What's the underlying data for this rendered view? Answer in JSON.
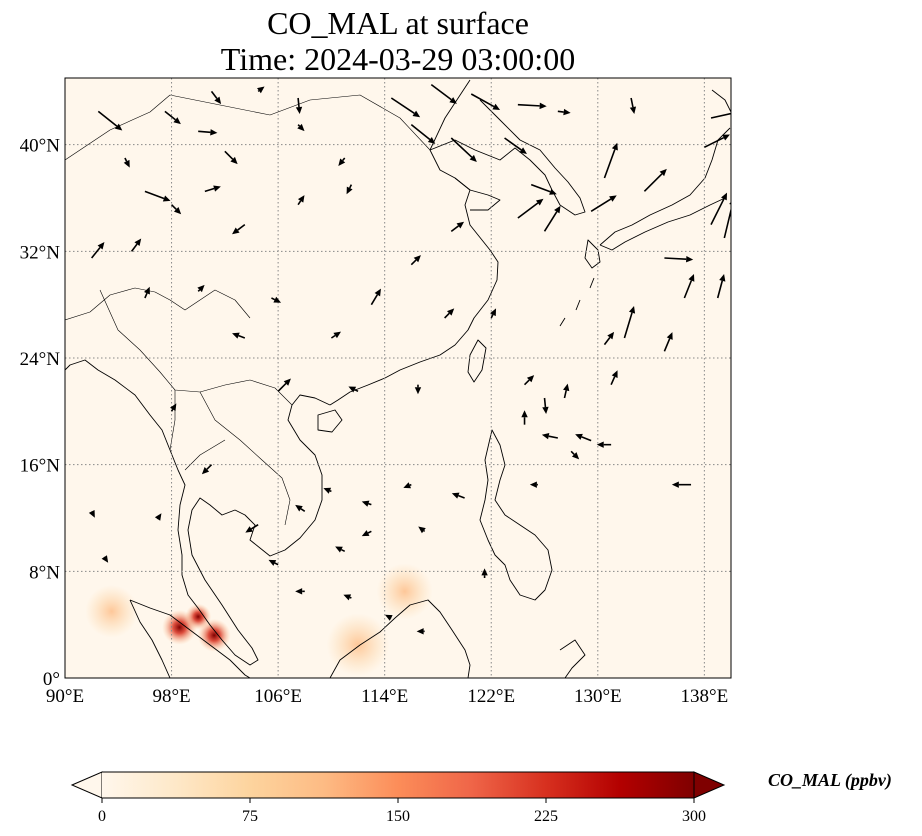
{
  "title": {
    "line1": "CO_MAL at surface",
    "line2": "Time: 2024-03-29 03:00:00"
  },
  "map": {
    "projection": "PlateCarree",
    "lon_range": [
      90,
      140
    ],
    "lat_range": [
      0,
      45
    ],
    "gridlines": "dotted",
    "x_ticks": [
      "90°E",
      "98°E",
      "106°E",
      "114°E",
      "122°E",
      "130°E",
      "138°E"
    ],
    "y_ticks": [
      "0°",
      "8°N",
      "16°N",
      "24°N",
      "32°N",
      "40°N"
    ],
    "x_tick_values": [
      90,
      98,
      106,
      114,
      122,
      130,
      138
    ],
    "y_tick_values": [
      0,
      8,
      16,
      24,
      32,
      40
    ],
    "field": "CO_MAL",
    "hotspots": [
      {
        "lon": 98.6,
        "lat": 3.8,
        "value": 300
      },
      {
        "lon": 101.2,
        "lat": 3.2,
        "value": 260
      },
      {
        "lon": 100.0,
        "lat": 4.6,
        "value": 120
      },
      {
        "lon": 112.0,
        "lat": 2.5,
        "value": 40
      },
      {
        "lon": 115.5,
        "lat": 6.5,
        "value": 30
      },
      {
        "lon": 93.5,
        "lat": 5.0,
        "value": 25
      }
    ],
    "wind_vectors": [
      {
        "lon": 92.5,
        "lat": 42.5,
        "u": 1.5,
        "v": -1.2
      },
      {
        "lon": 97.5,
        "lat": 42.5,
        "u": 1.0,
        "v": -0.8
      },
      {
        "lon": 101,
        "lat": 44,
        "u": 0.6,
        "v": -0.8
      },
      {
        "lon": 104.5,
        "lat": 44,
        "u": 0.4,
        "v": 0.3
      },
      {
        "lon": 107.5,
        "lat": 43.5,
        "u": 0.1,
        "v": -1.0
      },
      {
        "lon": 114.5,
        "lat": 43.5,
        "u": 1.8,
        "v": -1.2
      },
      {
        "lon": 117.5,
        "lat": 44.5,
        "u": 1.6,
        "v": -1.2
      },
      {
        "lon": 120.5,
        "lat": 43.8,
        "u": 1.8,
        "v": -1.0
      },
      {
        "lon": 124,
        "lat": 43,
        "u": 1.8,
        "v": -0.1
      },
      {
        "lon": 127,
        "lat": 42.5,
        "u": 0.8,
        "v": -0.1
      },
      {
        "lon": 132.5,
        "lat": 43.5,
        "u": 0.2,
        "v": -1.0
      },
      {
        "lon": 138.5,
        "lat": 42,
        "u": 1.8,
        "v": 0.4
      },
      {
        "lon": 116,
        "lat": 41.5,
        "u": 1.5,
        "v": -1.2
      },
      {
        "lon": 119,
        "lat": 40.5,
        "u": 1.6,
        "v": -1.5
      },
      {
        "lon": 123,
        "lat": 40.5,
        "u": 1.4,
        "v": -1.0
      },
      {
        "lon": 125,
        "lat": 37,
        "u": 1.6,
        "v": -0.6
      },
      {
        "lon": 130.5,
        "lat": 37.5,
        "u": 0.8,
        "v": 2.2
      },
      {
        "lon": 133.5,
        "lat": 36.5,
        "u": 1.4,
        "v": 1.4
      },
      {
        "lon": 138,
        "lat": 39.8,
        "u": 1.6,
        "v": 0.8
      },
      {
        "lon": 138.5,
        "lat": 34,
        "u": 1.0,
        "v": 2.0
      },
      {
        "lon": 139.5,
        "lat": 33,
        "u": 0.6,
        "v": 2.5
      },
      {
        "lon": 129.5,
        "lat": 35,
        "u": 1.6,
        "v": 1.0
      },
      {
        "lon": 124,
        "lat": 34.5,
        "u": 1.6,
        "v": 1.2
      },
      {
        "lon": 126,
        "lat": 33.5,
        "u": 1.0,
        "v": 1.6
      },
      {
        "lon": 119,
        "lat": 33.5,
        "u": 0.8,
        "v": 0.6
      },
      {
        "lon": 135,
        "lat": 31.5,
        "u": 1.8,
        "v": -0.1
      },
      {
        "lon": 136.5,
        "lat": 28.5,
        "u": 0.6,
        "v": 1.5
      },
      {
        "lon": 139,
        "lat": 28.5,
        "u": 0.4,
        "v": 1.5
      },
      {
        "lon": 132,
        "lat": 25.5,
        "u": 0.6,
        "v": 2.0
      },
      {
        "lon": 130.5,
        "lat": 25.0,
        "u": 0.6,
        "v": 0.8
      },
      {
        "lon": 135,
        "lat": 24.5,
        "u": 0.5,
        "v": 1.2
      },
      {
        "lon": 96,
        "lat": 36.5,
        "u": 1.6,
        "v": -0.6
      },
      {
        "lon": 98,
        "lat": 35.5,
        "u": 0.6,
        "v": -0.6
      },
      {
        "lon": 100.5,
        "lat": 36.5,
        "u": 1.0,
        "v": 0.3
      },
      {
        "lon": 95,
        "lat": 32,
        "u": 0.6,
        "v": 0.8
      },
      {
        "lon": 92,
        "lat": 31.5,
        "u": 0.8,
        "v": 1.0
      },
      {
        "lon": 103.5,
        "lat": 34,
        "u": -0.8,
        "v": -0.6
      },
      {
        "lon": 107.5,
        "lat": 35.5,
        "u": 0.4,
        "v": 0.6
      },
      {
        "lon": 111.5,
        "lat": 37,
        "u": -0.3,
        "v": -0.6
      },
      {
        "lon": 105.5,
        "lat": 28.5,
        "u": 0.6,
        "v": -0.3
      },
      {
        "lon": 113,
        "lat": 28,
        "u": 0.6,
        "v": 1.0
      },
      {
        "lon": 116,
        "lat": 31,
        "u": 0.6,
        "v": 0.6
      },
      {
        "lon": 116.5,
        "lat": 22,
        "u": 0.0,
        "v": -0.6
      },
      {
        "lon": 124.5,
        "lat": 22,
        "u": 0.6,
        "v": 0.6
      },
      {
        "lon": 126,
        "lat": 21,
        "u": 0.1,
        "v": -1.0
      },
      {
        "lon": 127.5,
        "lat": 21,
        "u": 0.2,
        "v": 0.9
      },
      {
        "lon": 131,
        "lat": 22,
        "u": 0.4,
        "v": 0.9
      },
      {
        "lon": 124.5,
        "lat": 19,
        "u": 0.0,
        "v": 0.9
      },
      {
        "lon": 127,
        "lat": 18,
        "u": -1.0,
        "v": 0.2
      },
      {
        "lon": 129.5,
        "lat": 17.8,
        "u": -1.0,
        "v": 0.4
      },
      {
        "lon": 131,
        "lat": 17.5,
        "u": -0.9,
        "v": 0.0
      },
      {
        "lon": 128,
        "lat": 17,
        "u": 0.5,
        "v": -0.5
      },
      {
        "lon": 137,
        "lat": 14.5,
        "u": -1.2,
        "v": 0.0
      },
      {
        "lon": 125.5,
        "lat": 14.5,
        "u": -0.5,
        "v": 0.0
      },
      {
        "lon": 120,
        "lat": 13.5,
        "u": -0.8,
        "v": 0.3
      },
      {
        "lon": 116,
        "lat": 14.5,
        "u": -0.5,
        "v": -0.2
      },
      {
        "lon": 113,
        "lat": 13,
        "u": -0.6,
        "v": 0.2
      },
      {
        "lon": 110,
        "lat": 14,
        "u": -0.5,
        "v": 0.2
      },
      {
        "lon": 108,
        "lat": 12.5,
        "u": -0.6,
        "v": 0.4
      },
      {
        "lon": 111,
        "lat": 9.5,
        "u": -0.6,
        "v": 0.3
      },
      {
        "lon": 113,
        "lat": 11,
        "u": -0.6,
        "v": -0.3
      },
      {
        "lon": 117,
        "lat": 11,
        "u": -0.4,
        "v": 0.3
      },
      {
        "lon": 104.5,
        "lat": 11.5,
        "u": -0.8,
        "v": -0.5
      },
      {
        "lon": 106,
        "lat": 8.5,
        "u": -0.6,
        "v": 0.3
      },
      {
        "lon": 108,
        "lat": 6.5,
        "u": -0.6,
        "v": 0.0
      },
      {
        "lon": 111.5,
        "lat": 6.0,
        "u": -0.5,
        "v": 0.2
      },
      {
        "lon": 114.5,
        "lat": 4.5,
        "u": -0.4,
        "v": 0.2
      },
      {
        "lon": 117,
        "lat": 3.5,
        "u": -0.5,
        "v": 0.0
      },
      {
        "lon": 121.5,
        "lat": 7.5,
        "u": 0.0,
        "v": 0.6
      },
      {
        "lon": 92,
        "lat": 12.5,
        "u": 0.2,
        "v": -0.4
      },
      {
        "lon": 93,
        "lat": 9,
        "u": 0.2,
        "v": -0.3
      },
      {
        "lon": 97,
        "lat": 12,
        "u": 0.2,
        "v": 0.3
      },
      {
        "lon": 101,
        "lat": 16,
        "u": -0.6,
        "v": -0.6
      },
      {
        "lon": 98,
        "lat": 20,
        "u": 0.3,
        "v": 0.5
      },
      {
        "lon": 106,
        "lat": 21.5,
        "u": 0.8,
        "v": 0.8
      },
      {
        "lon": 103.5,
        "lat": 25.5,
        "u": -0.8,
        "v": 0.3
      },
      {
        "lon": 110,
        "lat": 25.5,
        "u": 0.6,
        "v": 0.4
      },
      {
        "lon": 118.5,
        "lat": 27,
        "u": 0.6,
        "v": 0.6
      },
      {
        "lon": 122,
        "lat": 27,
        "u": 0.3,
        "v": 0.6
      },
      {
        "lon": 96,
        "lat": 28.5,
        "u": 0.3,
        "v": 0.7
      },
      {
        "lon": 100,
        "lat": 29,
        "u": 0.4,
        "v": 0.4
      },
      {
        "lon": 112,
        "lat": 21.5,
        "u": -0.6,
        "v": 0.3
      },
      {
        "lon": 102,
        "lat": 39.5,
        "u": 0.8,
        "v": -0.8
      },
      {
        "lon": 107.5,
        "lat": 41.5,
        "u": 0.4,
        "v": -0.4
      },
      {
        "lon": 94.5,
        "lat": 39,
        "u": 0.3,
        "v": -0.6
      },
      {
        "lon": 100,
        "lat": 41,
        "u": 1.2,
        "v": -0.1
      },
      {
        "lon": 111,
        "lat": 39,
        "u": -0.4,
        "v": -0.5
      }
    ]
  },
  "colorbar": {
    "cmap": "OrRd",
    "min": 0,
    "max": 300,
    "extend": "both",
    "ticks": [
      "0",
      "75",
      "150",
      "225",
      "300"
    ],
    "tick_values": [
      0,
      75,
      150,
      225,
      300
    ],
    "label": "CO_MAL (ppbv)",
    "colors": [
      "#fff7ec",
      "#fee8c8",
      "#fdd49e",
      "#fdbb84",
      "#fc8d59",
      "#ef6548",
      "#d7301f",
      "#b30000",
      "#7f0000"
    ]
  }
}
